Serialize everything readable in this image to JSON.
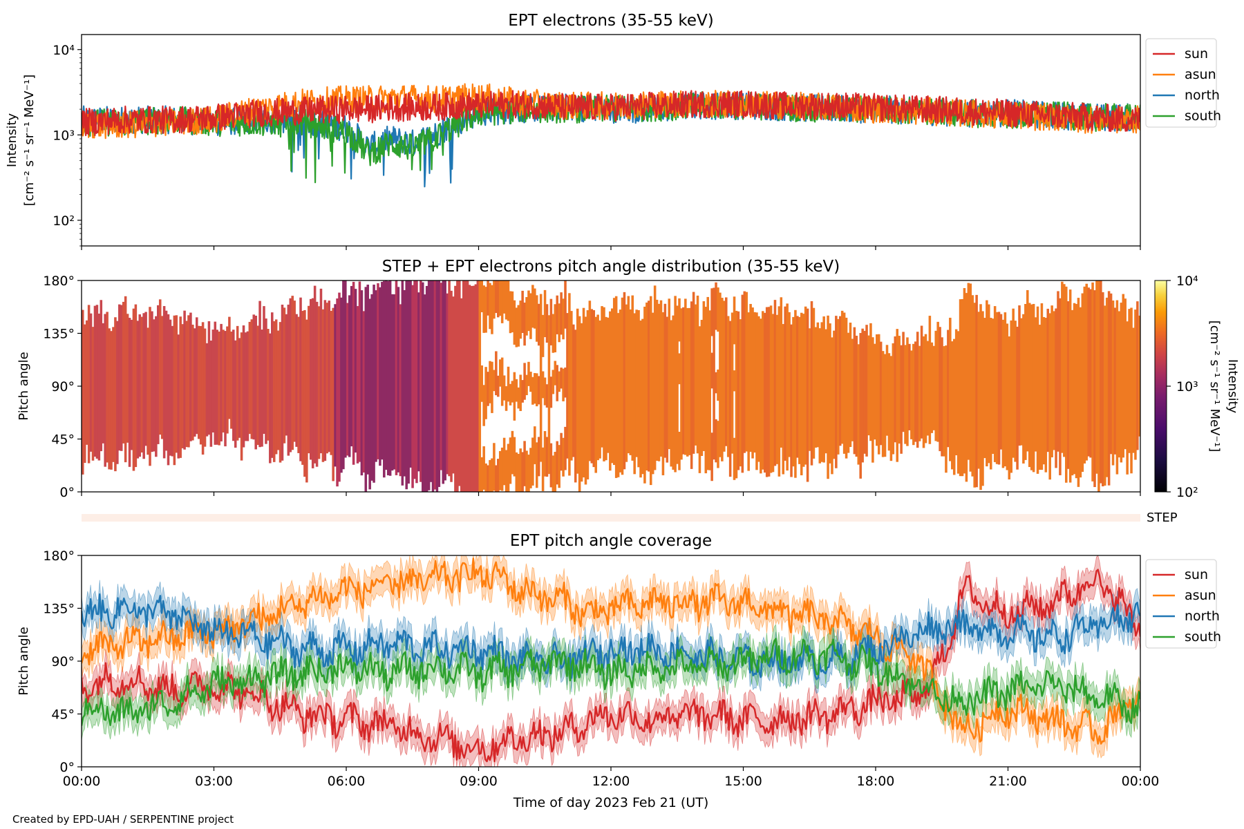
{
  "credit": "Created by EPD-UAH / SERPENTINE project",
  "colors": {
    "sun": "#d62728",
    "asun": "#ff7f0e",
    "north": "#1f77b4",
    "south": "#2ca02c",
    "step_band": "#fdeee6"
  },
  "shared_x": {
    "xlabel": "Time of day 2023 Feb 21 (UT)",
    "ticks": [
      "00:00",
      "03:00",
      "06:00",
      "09:00",
      "12:00",
      "15:00",
      "18:00",
      "21:00",
      "00:00"
    ],
    "xlim_hours": [
      0,
      24
    ]
  },
  "chart_data": [
    {
      "type": "line",
      "title": "EPT electrons (35-55 keV)",
      "ylabel": "Intensity",
      "ylabel_units": "[cm⁻² s⁻¹ sr⁻¹ MeV⁻¹]",
      "yscale": "log",
      "ylim": [
        50,
        15000
      ],
      "yticks": [
        {
          "value": 100,
          "label": "10²"
        },
        {
          "value": 1000,
          "label": "10³"
        },
        {
          "value": 10000,
          "label": "10⁴"
        }
      ],
      "legend_position": "outside-right",
      "x_hours": [
        0,
        1,
        2,
        3,
        4,
        5,
        6,
        6.5,
        7,
        7.5,
        8,
        8.5,
        9,
        10,
        11,
        12,
        13,
        14,
        15,
        16,
        17,
        18,
        19,
        20,
        21,
        22,
        23,
        24
      ],
      "series": [
        {
          "name": "sun",
          "values": [
            1400,
            1500,
            1500,
            1600,
            1800,
            1900,
            2000,
            2000,
            2100,
            2100,
            2100,
            2200,
            2200,
            2300,
            2100,
            2100,
            2200,
            2300,
            2300,
            2200,
            2200,
            2100,
            2000,
            1900,
            1800,
            1700,
            1600,
            1500
          ]
        },
        {
          "name": "asun",
          "values": [
            1300,
            1300,
            1400,
            1500,
            2000,
            2400,
            2600,
            2600,
            2700,
            2700,
            2600,
            2700,
            2800,
            2400,
            2200,
            2200,
            2300,
            2300,
            2300,
            2200,
            2100,
            2000,
            1900,
            1800,
            1700,
            1600,
            1500,
            1500
          ]
        },
        {
          "name": "north",
          "values": [
            1500,
            1500,
            1500,
            1400,
            1500,
            1500,
            1200,
            700,
            900,
            800,
            1000,
            1400,
            1800,
            2000,
            2100,
            2000,
            2000,
            2200,
            2200,
            2100,
            2000,
            2000,
            1900,
            1800,
            1800,
            1700,
            1600,
            1600
          ]
        },
        {
          "name": "south",
          "values": [
            1400,
            1400,
            1500,
            1400,
            1400,
            1400,
            1100,
            600,
            800,
            700,
            900,
            1300,
            1800,
            2000,
            2000,
            2000,
            2100,
            2200,
            2200,
            2100,
            2000,
            2000,
            1900,
            1800,
            1700,
            1700,
            1600,
            1600
          ]
        }
      ]
    },
    {
      "type": "heatmap",
      "title": "STEP + EPT electrons pitch angle distribution (35-55 keV)",
      "ylabel": "Pitch angle",
      "ylim": [
        0,
        180
      ],
      "yticks": [
        "0°",
        "45°",
        "90°",
        "135°",
        "180°"
      ],
      "colorbar": {
        "label": "Intensity",
        "units": "[cm⁻² s⁻¹ sr⁻¹ MeV⁻¹]",
        "scale": "log",
        "range": [
          100,
          10000
        ],
        "tick_labels": [
          "10²",
          "10³",
          "10⁴"
        ],
        "colormap": "inferno"
      },
      "step_label": "STEP"
    },
    {
      "type": "line",
      "title": "EPT pitch angle coverage",
      "ylabel": "Pitch angle",
      "ylim": [
        0,
        180
      ],
      "yticks": [
        "0°",
        "45°",
        "90°",
        "135°",
        "180°"
      ],
      "legend_position": "outside-right",
      "x_hours": [
        0,
        1,
        2,
        3,
        4,
        5,
        6,
        7,
        8,
        9,
        9.5,
        10,
        11,
        11.5,
        12,
        13,
        14,
        15,
        16,
        17,
        18,
        19,
        19.5,
        20,
        21,
        22,
        23,
        24
      ],
      "series": [
        {
          "name": "sun",
          "values": [
            70,
            75,
            65,
            70,
            60,
            45,
            40,
            35,
            25,
            15,
            20,
            25,
            30,
            40,
            45,
            40,
            45,
            40,
            40,
            45,
            55,
            60,
            90,
            150,
            130,
            140,
            160,
            120
          ]
        },
        {
          "name": "asun",
          "values": [
            100,
            105,
            110,
            115,
            125,
            140,
            150,
            155,
            160,
            165,
            160,
            150,
            140,
            130,
            135,
            140,
            140,
            140,
            130,
            125,
            110,
            90,
            60,
            30,
            50,
            40,
            30,
            60
          ]
        },
        {
          "name": "north",
          "values": [
            130,
            135,
            130,
            115,
            110,
            100,
            100,
            105,
            100,
            100,
            95,
            90,
            90,
            95,
            100,
            100,
            95,
            90,
            90,
            90,
            100,
            115,
            120,
            120,
            115,
            110,
            120,
            130
          ]
        },
        {
          "name": "south",
          "values": [
            50,
            45,
            55,
            70,
            75,
            80,
            85,
            80,
            85,
            80,
            82,
            85,
            90,
            85,
            80,
            85,
            85,
            90,
            95,
            95,
            85,
            70,
            60,
            55,
            65,
            70,
            60,
            50
          ]
        }
      ]
    }
  ]
}
